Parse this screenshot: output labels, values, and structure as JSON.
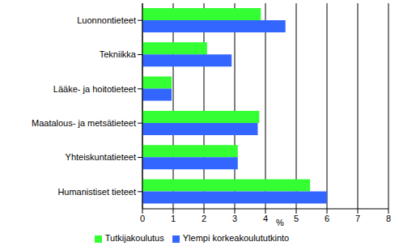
{
  "chart_data": {
    "type": "bar",
    "orientation": "horizontal",
    "categories": [
      "Luonnontieteet",
      "Tekniikka",
      "Lääke- ja hoitotieteet",
      "Maatalous- ja metsätieteet",
      "Yhteiskuntatieteet",
      "Humanistiset tieteet"
    ],
    "series": [
      {
        "name": "Tutkijakoulutus",
        "color": "#33ff33",
        "values": [
          3.85,
          2.1,
          0.95,
          3.8,
          3.1,
          5.45
        ]
      },
      {
        "name": "Ylempi korkeakoulututkinto",
        "color": "#3366ff",
        "values": [
          4.65,
          2.9,
          0.95,
          3.75,
          3.1,
          6.0
        ]
      }
    ],
    "x_label": "%",
    "xlim": [
      0,
      8
    ],
    "xticks": [
      0,
      1,
      2,
      3,
      4,
      5,
      6,
      7,
      8
    ],
    "grid": true,
    "legend": "bottom"
  }
}
